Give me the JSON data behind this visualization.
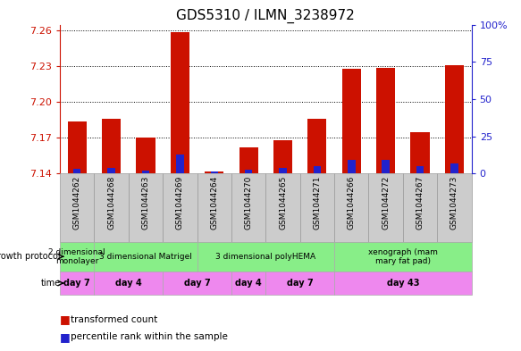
{
  "title": "GDS5310 / ILMN_3238972",
  "samples": [
    "GSM1044262",
    "GSM1044268",
    "GSM1044263",
    "GSM1044269",
    "GSM1044264",
    "GSM1044270",
    "GSM1044265",
    "GSM1044271",
    "GSM1044266",
    "GSM1044272",
    "GSM1044267",
    "GSM1044273"
  ],
  "red_values": [
    7.184,
    7.186,
    7.17,
    7.259,
    7.142,
    7.162,
    7.168,
    7.186,
    7.228,
    7.229,
    7.175,
    7.231
  ],
  "blue_values_pct": [
    3.0,
    4.0,
    2.0,
    13.0,
    1.5,
    2.5,
    4.0,
    5.0,
    9.0,
    9.0,
    5.0,
    7.0
  ],
  "y_min": 7.14,
  "y_max": 7.265,
  "y_ticks": [
    7.14,
    7.17,
    7.2,
    7.23,
    7.26
  ],
  "y2_ticks": [
    0,
    25,
    50,
    75,
    100
  ],
  "bar_color_red": "#cc1100",
  "bar_color_blue": "#2222cc",
  "sample_bg": "#cccccc",
  "gp_color": "#88ee88",
  "time_color": "#ee88ee",
  "growth_protocol_groups": [
    {
      "label": "2 dimensional\nmonolayer",
      "start": 0,
      "end": 1
    },
    {
      "label": "3 dimensional Matrigel",
      "start": 1,
      "end": 4
    },
    {
      "label": "3 dimensional polyHEMA",
      "start": 4,
      "end": 8
    },
    {
      "label": "xenograph (mam\nmary fat pad)",
      "start": 8,
      "end": 12
    }
  ],
  "time_groups": [
    {
      "label": "day 7",
      "start": 0,
      "end": 1
    },
    {
      "label": "day 4",
      "start": 1,
      "end": 3
    },
    {
      "label": "day 7",
      "start": 3,
      "end": 5
    },
    {
      "label": "day 4",
      "start": 5,
      "end": 6
    },
    {
      "label": "day 7",
      "start": 6,
      "end": 8
    },
    {
      "label": "day 43",
      "start": 8,
      "end": 12
    }
  ],
  "growth_protocol_label": "growth protocol",
  "time_label": "time",
  "legend_red": "transformed count",
  "legend_blue": "percentile rank within the sample"
}
